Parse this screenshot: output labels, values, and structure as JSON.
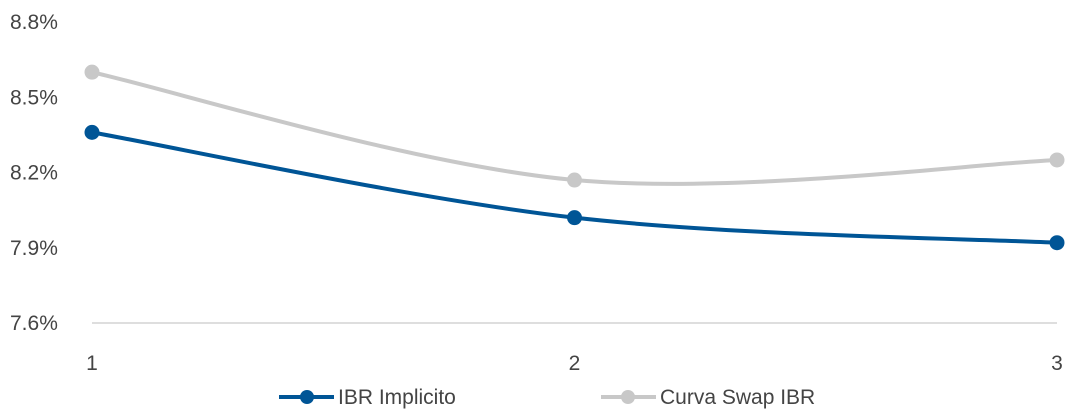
{
  "chart_data": {
    "type": "line",
    "x": [
      "1",
      "2",
      "3"
    ],
    "ylim": [
      7.6,
      8.8
    ],
    "yticks": [
      "7.6%",
      "7.9%",
      "8.2%",
      "8.5%",
      "8.8%"
    ],
    "ytick_values": [
      7.6,
      7.9,
      8.2,
      8.5,
      8.8
    ],
    "grid": false,
    "legend": "bottom",
    "series": [
      {
        "name": "IBR Implicito",
        "values": [
          8.36,
          8.02,
          7.92
        ],
        "color": "#005596"
      },
      {
        "name": "Curva Swap IBR",
        "values": [
          8.6,
          8.17,
          8.25
        ],
        "color": "#c8c8c8"
      }
    ]
  }
}
